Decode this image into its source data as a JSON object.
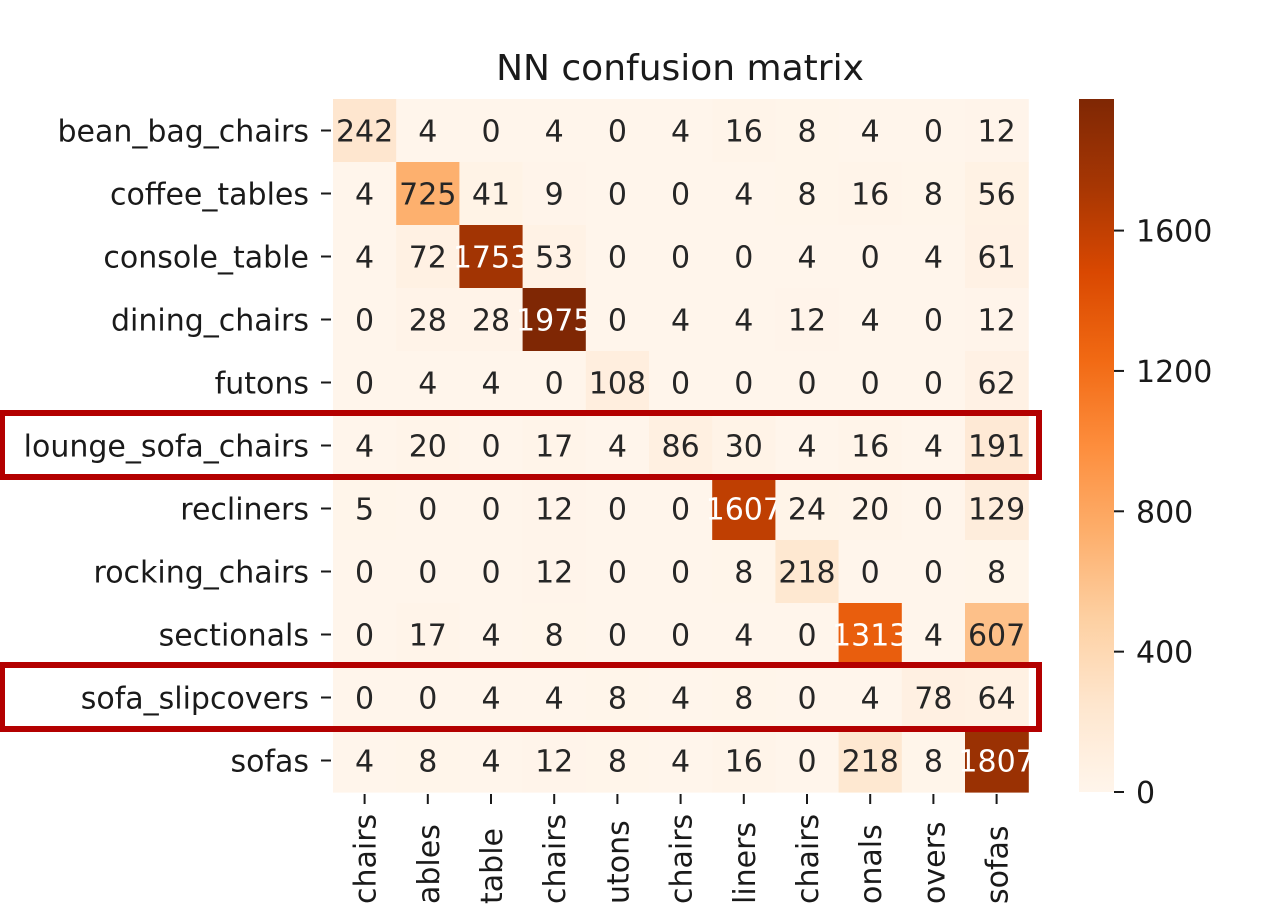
{
  "chart_data": {
    "type": "heatmap",
    "title": "NN confusion matrix",
    "xlabel": "",
    "ylabel": "",
    "row_labels": [
      "bean_bag_chairs",
      "coffee_tables",
      "console_table",
      "dining_chairs",
      "futons",
      "lounge_sofa_chairs",
      "recliners",
      "rocking_chairs",
      "sectionals",
      "sofa_slipcovers",
      "sofas"
    ],
    "col_labels_visible": [
      "chairs",
      "ables",
      "table",
      "chairs",
      "utons",
      "chairs",
      "liners",
      "chairs",
      "onals",
      "overs",
      "sofas"
    ],
    "matrix": [
      [
        242,
        4,
        0,
        4,
        0,
        4,
        16,
        8,
        4,
        0,
        12
      ],
      [
        4,
        725,
        41,
        9,
        0,
        0,
        4,
        8,
        16,
        8,
        56
      ],
      [
        4,
        72,
        1753,
        53,
        0,
        0,
        0,
        4,
        0,
        4,
        61
      ],
      [
        0,
        28,
        28,
        1975,
        0,
        4,
        4,
        12,
        4,
        0,
        12
      ],
      [
        0,
        4,
        4,
        0,
        108,
        0,
        0,
        0,
        0,
        0,
        62
      ],
      [
        4,
        20,
        0,
        17,
        4,
        86,
        30,
        4,
        16,
        4,
        191
      ],
      [
        5,
        0,
        0,
        12,
        0,
        0,
        1607,
        24,
        20,
        0,
        129
      ],
      [
        0,
        0,
        0,
        12,
        0,
        0,
        8,
        218,
        0,
        0,
        8
      ],
      [
        0,
        17,
        4,
        8,
        0,
        0,
        4,
        0,
        1313,
        4,
        607
      ],
      [
        0,
        0,
        4,
        4,
        8,
        4,
        8,
        0,
        4,
        78,
        64
      ],
      [
        4,
        8,
        4,
        12,
        8,
        4,
        16,
        0,
        218,
        8,
        1807
      ]
    ],
    "colormap": "Oranges",
    "colorbar": {
      "ticks": [
        0,
        400,
        800,
        1200,
        1600
      ],
      "min": 0,
      "max": 1975
    },
    "highlighted_rows": [
      "lounge_sofa_chairs",
      "sofa_slipcovers"
    ],
    "highlight_color": "#b30000",
    "grid": false
  }
}
